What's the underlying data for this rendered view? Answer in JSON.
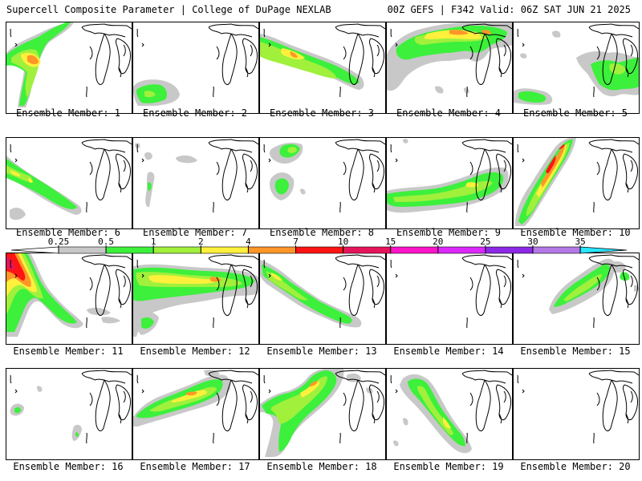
{
  "header": {
    "left": "Supercell Composite Parameter | College of DuPage NEXLAB",
    "right": "00Z GEFS | F342 Valid: 06Z SAT JUN 21 2025"
  },
  "member_label_prefix": "Ensemble Member:",
  "members": [
    1,
    2,
    3,
    4,
    5,
    6,
    7,
    8,
    9,
    10,
    11,
    12,
    13,
    14,
    15,
    16,
    17,
    18,
    19,
    20
  ],
  "colorbar": {
    "levels": [
      "0.25",
      "0.5",
      "1",
      "2",
      "4",
      "7",
      "10",
      "15",
      "20",
      "25",
      "30",
      "35"
    ],
    "colors": [
      "#c8c8c8",
      "#3cf03c",
      "#a0f03c",
      "#fff03c",
      "#ff9628",
      "#ff1414",
      "#e6145a",
      "#ff14c8",
      "#dc28ff",
      "#8c28e6",
      "#b478e6",
      "#28e6ff"
    ],
    "under_color": "#ffffff",
    "over_color": "#28e6ff"
  },
  "colors": {
    "background": "#ffffff",
    "outline": "#000000"
  }
}
